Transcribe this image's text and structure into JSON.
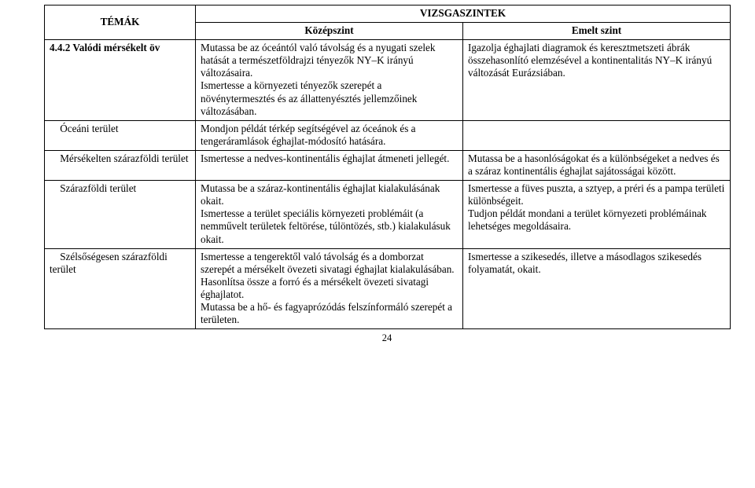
{
  "header": {
    "col1": "TÉMÁK",
    "merged": "VIZSGASZINTEK",
    "col2": "Középszint",
    "col3": "Emelt szint"
  },
  "rows": [
    {
      "topic": "4.4.2 Valódi mérsékelt öv",
      "topic_bold": true,
      "mid": "Mutassa be az óceántól való távolság és a nyugati szelek hatását a természetföldrajzi tényezők NY–K irányú változásaira.\nIsmertesse a környezeti tényezők szerepét a növénytermesztés és az állattenyésztés jellemzőinek változásában.",
      "high": "Igazolja éghajlati diagramok és keresztmetszeti ábrák összehasonlító elemzésével a kontinentalitás NY–K irányú változását Eurázsiában."
    },
    {
      "topic": "    Óceáni terület",
      "topic_bold": false,
      "mid": "Mondjon példát térkép segítségével az óceánok és a tengeráramlások éghajlat-módosító hatására.",
      "high": ""
    },
    {
      "topic": "    Mérsékelten szárazföldi terület",
      "topic_bold": false,
      "mid": "Ismertesse a nedves-kontinentális éghajlat átmeneti jellegét.",
      "high": "Mutassa be a hasonlóságokat és a különbségeket a nedves és a száraz kontinentális éghajlat sajátosságai között."
    },
    {
      "topic": "    Szárazföldi terület",
      "topic_bold": false,
      "mid": "Mutassa be a száraz-kontinentális éghajlat kialakulásának okait.\nIsmertesse a terület speciális környezeti problémáit (a nemművelt területek feltörése, túlöntözés, stb.) kialakulásuk okait.",
      "high": "Ismertesse a füves puszta, a sztyep, a préri és a pampa területi különbségeit.\nTudjon példát mondani a terület környezeti problémáinak lehetséges megoldásaira."
    },
    {
      "topic": "    Szélsőségesen szárazföldi terület",
      "topic_bold": false,
      "mid": "Ismertesse a tengerektől való távolság és a domborzat szerepét a mérsékelt övezeti sivatagi éghajlat kialakulásában.\nHasonlítsa össze a forró és a mérsékelt övezeti sivatagi éghajlatot.\nMutassa be a hő- és fagyaprózódás felszínformáló szerepét a területen.",
      "high": "Ismertesse a szikesedés, illetve a másodlagos szikesedés folyamatát, okait."
    }
  ],
  "page_number": "24"
}
